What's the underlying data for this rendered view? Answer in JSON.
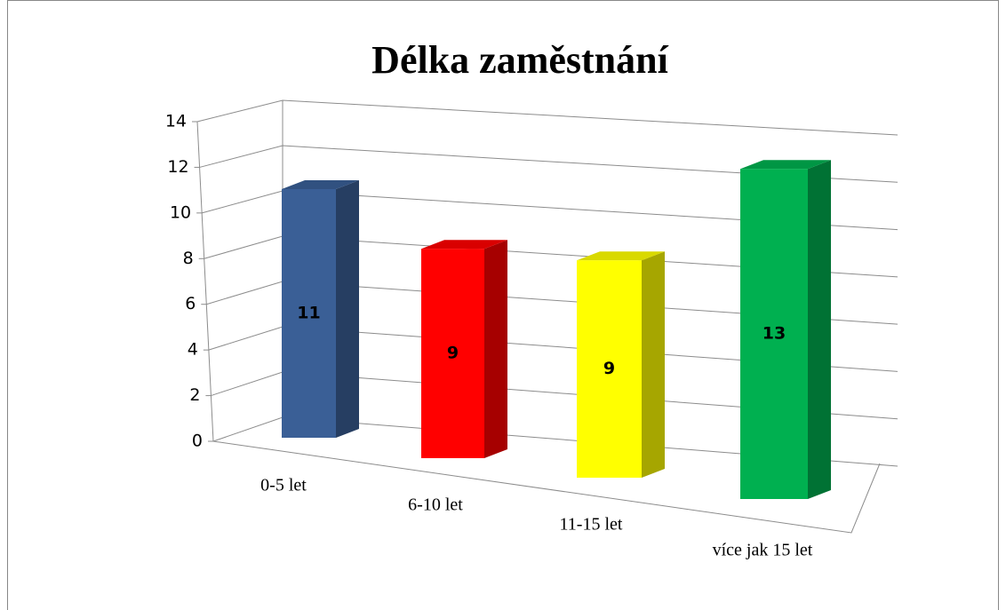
{
  "chart_data": {
    "type": "bar",
    "title": "Délka zaměstnání",
    "categories": [
      "0-5 let",
      "6-10 let",
      "11-15 let",
      "více jak 15 let"
    ],
    "values": [
      11,
      9,
      9,
      13
    ],
    "colors": [
      "#3a5f96",
      "#ff0000",
      "#ffff00",
      "#00b050"
    ],
    "ylim": [
      0,
      14
    ],
    "yticks": [
      0,
      2,
      4,
      6,
      8,
      10,
      12,
      14
    ],
    "grid": true
  }
}
